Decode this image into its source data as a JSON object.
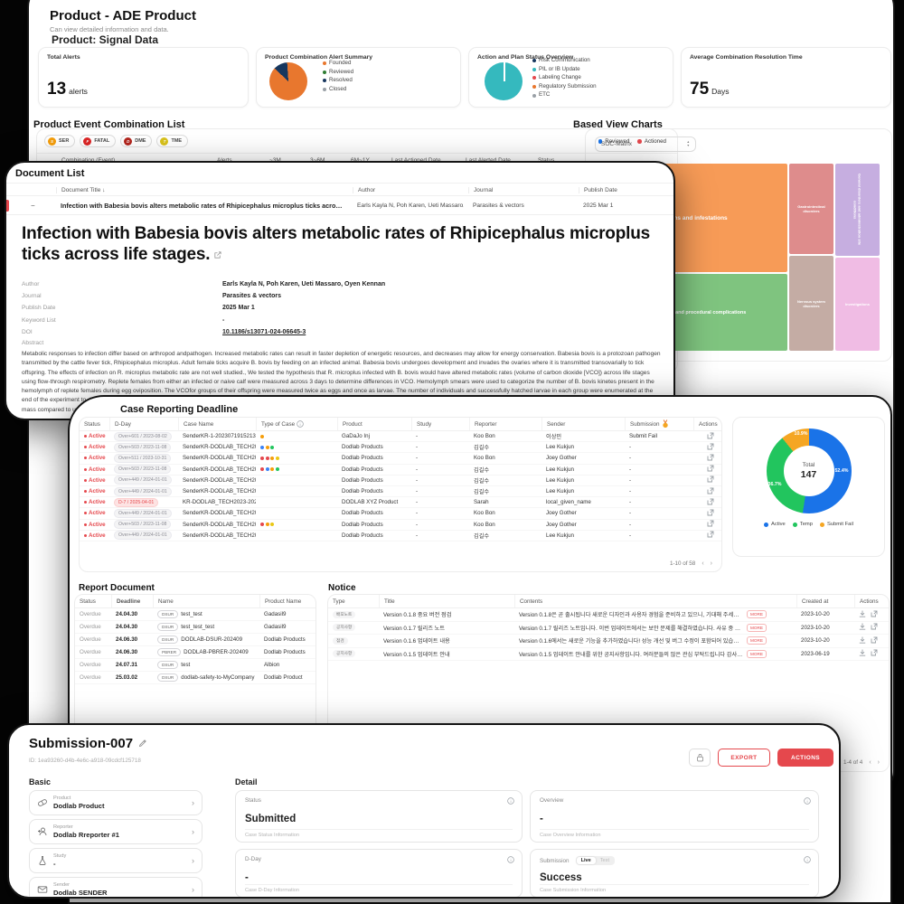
{
  "dashboard": {
    "title": "Product - ADE Product",
    "subtitle": "Can view detailed information and data.",
    "section_title": "Product: Signal Data",
    "cards": {
      "total_alerts": {
        "label": "Total Alerts",
        "value": "13",
        "unit": "alerts"
      },
      "alert_summary": {
        "label": "Product Combination Alert Summary",
        "legend": [
          {
            "label": "Founded",
            "color": "#E8772E"
          },
          {
            "label": "Reviewed",
            "color": "#2F7D33"
          },
          {
            "label": "Resolved",
            "color": "#17375E"
          },
          {
            "label": "Closed",
            "color": "#9AA0A6"
          }
        ]
      },
      "action_plan": {
        "label": "Action and Plan Status Overview",
        "legend": [
          {
            "label": "Risk Communication",
            "color": "#17375E"
          },
          {
            "label": "PIL or IB Update",
            "color": "#35B9BE"
          },
          {
            "label": "Labeling Change",
            "color": "#E5484D"
          },
          {
            "label": "Regulatory Submission",
            "color": "#E8772E"
          },
          {
            "label": "ETC",
            "color": "#9AA0A6"
          }
        ]
      },
      "resolution_time": {
        "label": "Average Combination Resolution Time",
        "value": "75",
        "unit": "Days"
      }
    },
    "combination_list": {
      "title": "Product Event Combination List",
      "chips": [
        {
          "initial": "S",
          "label": "SER",
          "color": "#F59E0B"
        },
        {
          "initial": "F",
          "label": "FATAL",
          "color": "#DC2626"
        },
        {
          "initial": "D",
          "label": "DME",
          "color": "#B3261E"
        },
        {
          "initial": "T",
          "label": "TME",
          "color": "#D9C21B"
        }
      ],
      "legend": [
        {
          "label": "Reviewed",
          "color": "#1A73E8"
        },
        {
          "label": "Actioned",
          "color": "#E5484D"
        }
      ],
      "columns": [
        "Combination (Event)",
        "Alerts",
        "~3M",
        "3~6M",
        "6M~1Y",
        "Last Actioned Date",
        "Last Alerted Date",
        "Status"
      ]
    },
    "based_view": {
      "title": "Based View Charts",
      "select_value": "SOC-Matrix"
    }
  },
  "chart_data": [
    {
      "type": "pie",
      "title": "Product Combination Alert Summary",
      "labels": [
        "Founded",
        "Reviewed",
        "Resolved",
        "Closed"
      ],
      "values": [
        88,
        0,
        12,
        0
      ],
      "colors": [
        "#E8772E",
        "#2F7D33",
        "#17375E",
        "#9AA0A6"
      ],
      "legend_position": "right"
    },
    {
      "type": "pie",
      "title": "Action and Plan Status Overview",
      "labels": [
        "Risk Communication",
        "PIL or IB Update",
        "Labeling Change",
        "Regulatory Submission",
        "ETC"
      ],
      "values": [
        0,
        100,
        0,
        0,
        0
      ],
      "colors": [
        "#17375E",
        "#35B9BE",
        "#E5484D",
        "#E8772E",
        "#9AA0A6"
      ],
      "legend_position": "right"
    },
    {
      "type": "pie",
      "subtype": "donut",
      "title": "Case Reporting Status",
      "center_label": "Total",
      "center_value": "147",
      "labels": [
        "Active",
        "Temp",
        "Submit Fail"
      ],
      "values_pct": [
        52.4,
        36.7,
        10.9
      ],
      "pct_labels": [
        "52.4%",
        "36.7%",
        "10.9%"
      ],
      "colors": [
        "#1A73E8",
        "#22C55E",
        "#F5A623"
      ],
      "legend_position": "bottom"
    },
    {
      "type": "heatmap",
      "subtype": "treemap",
      "title": "Based View Charts (SOC-Matrix)",
      "blocks": [
        {
          "label": "Infections and infestations",
          "color": "#F79B57"
        },
        {
          "label": "Injury, poisoning and procedural complications",
          "color": "#7FC47F"
        },
        {
          "label": "Gastrointestinal disorders",
          "color": "#DE8C8C"
        },
        {
          "label": "Nervous system disorders",
          "color": "#C4ACA4"
        },
        {
          "label": "General disorders and administration site conditions",
          "color": "#C6AEE0"
        },
        {
          "label": "Investigations",
          "color": "#F0BCE4"
        }
      ]
    }
  ],
  "document_list": {
    "title": "Document List",
    "columns": [
      "Document Title",
      "Author",
      "Journal",
      "Publish Date"
    ],
    "row": {
      "expand_icon": "−",
      "title": "Infection with Babesia bovis alters metabolic rates of Rhipicephalus microplus ticks across life stages.",
      "author": "Earls Kayla N, Poh Karen, Ueti Massaro, Oy...",
      "journal": "Parasites & vectors",
      "date": "2025 Mar 1"
    },
    "detail": {
      "title": "Infection with Babesia bovis alters metabolic rates of Rhipicephalus microplus ticks across life stages.",
      "fields": [
        {
          "label": "Author",
          "value": "Earls Kayla N, Poh Karen, Ueti Massaro, Oyen Kennan",
          "link": false
        },
        {
          "label": "Journal",
          "value": "Parasites & vectors",
          "link": false
        },
        {
          "label": "Publish Date",
          "value": "2025 Mar 1",
          "link": false
        },
        {
          "label": "Keyword List",
          "value": "-",
          "link": false
        },
        {
          "label": "DOI",
          "value": "10.1186/s13071-024-06645-3",
          "link": true
        }
      ],
      "abstract_label": "Abstract",
      "abstract": "Metabolic responses to infection differ based on arthropod andpathogen. Increased metabolic rates can result in faster depletion of energetic resources, and decreases may allow for energy conservation. Babesia bovis is a protozoan pathogen transmitted by the cattle fever tick, Rhipicephalus microplus. Adult female ticks acquire B. bovis by feeding on an infected animal. Babesia bovis undergoes development and invades the ovaries where it is transmitted transovarially to tick offspring. The effects of infection on R. microplus metabolic rate are not well studied., We tested the hypothesis that R. microplus infected with B. bovis would have altered metabolic rates (volume of carbon dioxide [VCO]) across life stages using flow-through respirometry. Replete females from either an infected or naive calf were measured across 3 days to determine differences in VCO. Hemolymph smears were used to categorize the number of B. bovis kinetes present in the hemolymph of replete females during egg oviposition. The VCOfor groups of their offspring were measured twice as eggs and once as larvae. The number of individuals and successfully hatched larvae in each group were enumerated at the end of the experiment to determine the average VCOper individual., Infected replete females have decreased VCOwhile their offspring have increased VCOat the egg and larval stages. Interestingly, replete females had a 25% reduction in body mass compared to uninfected female tickcontrols. Uninfected larvae were twice as likely to hatch than larvae from infected replete female ticks., VCOvaried between. Changes in metabolic rates"
    }
  },
  "case_deadline": {
    "title": "Case Reporting Deadline",
    "columns": [
      {
        "label": "Status"
      },
      {
        "label": "D-Day"
      },
      {
        "label": "Case Name"
      },
      {
        "label": "Type of Case",
        "icon": "info"
      },
      {
        "label": "Product"
      },
      {
        "label": "Study"
      },
      {
        "label": "Reporter"
      },
      {
        "label": "Sender"
      },
      {
        "label": "Submission",
        "icon": "medal"
      },
      {
        "label": "Actions"
      }
    ],
    "rows": [
      {
        "status": "Active",
        "dday": "Over+601 / 2023-08-02",
        "dday_variant": "gray",
        "case_name": "SenderKR-1-2023071915213316",
        "types": [
          "orange"
        ],
        "product": "GaDaJo Inj",
        "study": "-",
        "reporter": "Koo Bon",
        "sender": "이상민",
        "submission": "Submit Fail"
      },
      {
        "status": "Active",
        "dday": "Over+503 / 2023-11-08",
        "dday_variant": "gray",
        "case_name": "SenderKR-DODLAB_TECH2023...",
        "types": [
          "blue",
          "orange",
          "green"
        ],
        "product": "Dodlab Products",
        "study": "-",
        "reporter": "김길수",
        "sender": "Lee Kukjun",
        "submission": "-"
      },
      {
        "status": "Active",
        "dday": "Over+511 / 2023-10-31",
        "dday_variant": "gray",
        "case_name": "SenderKR-DODLAB_TECH2023...",
        "types": [
          "red",
          "red",
          "orange",
          "yellow"
        ],
        "product": "Dodlab Products",
        "study": "-",
        "reporter": "Koo Bon",
        "sender": "Joey Gother",
        "submission": "-"
      },
      {
        "status": "Active",
        "dday": "Over+503 / 2023-11-08",
        "dday_variant": "gray",
        "case_name": "SenderKR-DODLAB_TECH2023...",
        "types": [
          "red",
          "blue",
          "orange",
          "green"
        ],
        "product": "Dodlab Products",
        "study": "-",
        "reporter": "김길수",
        "sender": "Lee Kukjun",
        "submission": "-"
      },
      {
        "status": "Active",
        "dday": "Over+449 / 2024-01-01",
        "dday_variant": "gray",
        "case_name": "SenderKR-DODLAB_TECH2023...",
        "types": [],
        "product": "Dodlab Products",
        "study": "-",
        "reporter": "김길수",
        "sender": "Lee Kukjun",
        "submission": "-"
      },
      {
        "status": "Active",
        "dday": "Over+449 / 2024-01-01",
        "dday_variant": "gray",
        "case_name": "SenderKR-DODLAB_TECH2023...",
        "types": [],
        "product": "Dodlab Products",
        "study": "-",
        "reporter": "김길수",
        "sender": "Lee Kukjun",
        "submission": "-"
      },
      {
        "status": "Active",
        "dday": "D-7 / 2025-04-01",
        "dday_variant": "red",
        "case_name": "KR-DODLAB_TECH2023-20240...",
        "types": [],
        "product": "DODLAB XYZ Product",
        "study": "-",
        "reporter": "Sarah",
        "sender": "local_given_name",
        "submission": "-"
      },
      {
        "status": "Active",
        "dday": "Over+449 / 2024-01-01",
        "dday_variant": "gray",
        "case_name": "SenderKR-DODLAB_TECH2023...",
        "types": [],
        "product": "Dodlab Products",
        "study": "-",
        "reporter": "Koo Bon",
        "sender": "Joey Gother",
        "submission": "-"
      },
      {
        "status": "Active",
        "dday": "Over+503 / 2023-11-08",
        "dday_variant": "gray",
        "case_name": "SenderKR-DODLAB_TECH2023...",
        "types": [
          "red",
          "orange",
          "yellow"
        ],
        "product": "Dodlab Products",
        "study": "-",
        "reporter": "Koo Bon",
        "sender": "Joey Gother",
        "submission": "-"
      },
      {
        "status": "Active",
        "dday": "Over+449 / 2024-01-01",
        "dday_variant": "gray",
        "case_name": "SenderKR-DODLAB_TECH2023...",
        "types": [],
        "product": "Dodlab Products",
        "study": "-",
        "reporter": "김길수",
        "sender": "Lee Kukjun",
        "submission": "-"
      }
    ],
    "type_colors": {
      "red": "#E5484D",
      "orange": "#F59E0B",
      "yellow": "#EAC815",
      "green": "#22C55E",
      "blue": "#3B82F6"
    },
    "pagination": "1-10 of 58"
  },
  "report_document": {
    "title": "Report Document",
    "columns": [
      "Status",
      "Deadline",
      "Name",
      "Product Name"
    ],
    "rows": [
      {
        "status": "Overdue",
        "deadline": "24.04.30",
        "badge": "DSUR",
        "name": "test_test",
        "product": "Gadasil9"
      },
      {
        "status": "Overdue",
        "deadline": "24.04.30",
        "badge": "DSUR",
        "name": "test_test_test",
        "product": "Gadasil9"
      },
      {
        "status": "Overdue",
        "deadline": "24.06.30",
        "badge": "DSUR",
        "name": "DODLAB-DSUR-202409",
        "product": "Dodlab Products"
      },
      {
        "status": "Overdue",
        "deadline": "24.06.30",
        "badge": "PBRER",
        "name": "DODLAB-PBRER-202409",
        "product": "Dodlab Products"
      },
      {
        "status": "Overdue",
        "deadline": "24.07.31",
        "badge": "DSUR",
        "name": "test",
        "product": "Albion"
      },
      {
        "status": "Overdue",
        "deadline": "25.03.02",
        "badge": "DSUR",
        "name": "dodlab-safety-to-MyCompany",
        "product": "Dodlab Product"
      }
    ]
  },
  "notice": {
    "title": "Notice",
    "columns": [
      "Type",
      "Title",
      "Contents",
      "Created at",
      "Actions"
    ],
    "more_label": "MORE",
    "rows": [
      {
        "type": "배포노트",
        "title": "Version 0.1.8 중요 버전 점검",
        "contents": "Version 0.1.8은 곧 출시됩니다 새로운 디자인과 사용자 경험을 준비하고 있으니, 기대해 주세요! ...",
        "created": "2023-10-20"
      },
      {
        "type": "공지사항",
        "title": "Version 0.1.7 릴리즈 노트",
        "contents": "Version 0.1.7 릴리즈 노트입니다. 이번 업데이트에서는 보안 문제를 해결하였습니다. 사유 중 불편...",
        "created": "2023-10-20"
      },
      {
        "type": "점검",
        "title": "Version 0.1.6 업데이트 내용",
        "contents": "Version 0.1.6에서는 새로운 기능을 추가하였습니다! 성능 개선 및 버그 수정이 포함되어 있습니다...",
        "created": "2023-10-20"
      },
      {
        "type": "공지사항",
        "title": "Version 0.1.5 업데이트 안내",
        "contents": "Version 0.1.5 업데이트 안내를 위한 공지사항입니다. 여러분들의 많은 관심 부탁드립니다 감사합...",
        "created": "2023-06-19"
      }
    ],
    "pagination": "1-4 of 4"
  },
  "submission": {
    "title": "Submission-007",
    "id": "ID: 1ea93260-d4b-4e6c-a918-09cdcf125718",
    "export_label": "EXPORT",
    "actions_label": "ACTIONS",
    "basic_label": "Basic",
    "detail_label": "Detail",
    "basic": [
      {
        "icon": "capsule",
        "label": "Product",
        "value": "Dodlab Product"
      },
      {
        "icon": "person-plus",
        "label": "Reporter",
        "value": "Dodlab Rreporter #1"
      },
      {
        "icon": "flask",
        "label": "Study",
        "value": "-"
      },
      {
        "icon": "envelope",
        "label": "Sender",
        "value": "Dodlab SENDER"
      }
    ],
    "detail": [
      {
        "label": "Status",
        "value": "Submitted",
        "helper": "Case Status Information",
        "toggle": null
      },
      {
        "label": "Overview",
        "value": "-",
        "helper": "Case Overview Information",
        "toggle": null
      },
      {
        "label": "D-Day",
        "value": "-",
        "helper": "Case D-Day Information",
        "toggle": null
      },
      {
        "label": "Submission",
        "value": "Success",
        "helper": "Case Submission Information",
        "toggle": {
          "on": "Live",
          "off": "Test"
        }
      }
    ]
  }
}
